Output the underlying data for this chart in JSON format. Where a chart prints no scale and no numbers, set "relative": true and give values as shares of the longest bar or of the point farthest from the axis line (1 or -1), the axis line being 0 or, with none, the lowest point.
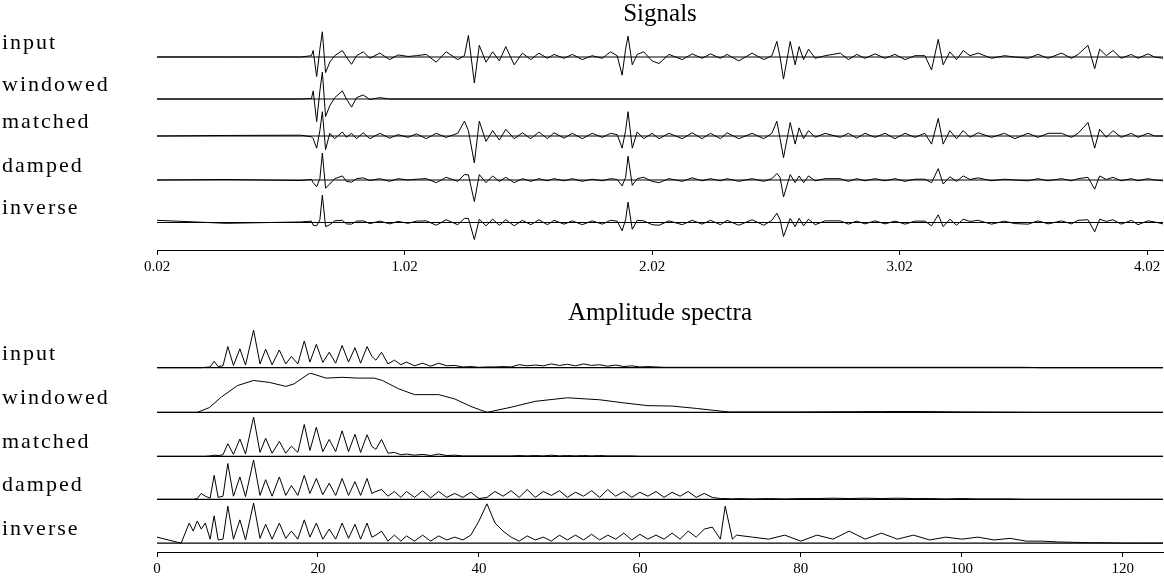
{
  "chart_data": [
    {
      "type": "line",
      "title": "Signals",
      "ylabel": "input",
      "relative": true,
      "color": "#000000",
      "xlim": [
        0.02,
        4.084
      ],
      "tick_labels": false,
      "x": [
        0.02,
        0.3,
        0.6,
        0.644,
        0.651,
        0.665,
        0.678,
        0.688,
        0.701,
        0.718,
        0.738,
        0.769,
        0.785,
        0.806,
        0.826,
        0.853,
        0.88,
        0.92,
        0.96,
        0.994,
        1.034,
        1.068,
        1.108,
        1.148,
        1.188,
        1.235,
        1.262,
        1.278,
        1.302,
        1.322,
        1.349,
        1.376,
        1.403,
        1.429,
        1.463,
        1.496,
        1.53,
        1.563,
        1.597,
        1.624,
        1.664,
        1.698,
        1.738,
        1.778,
        1.819,
        1.852,
        1.879,
        1.899,
        1.913,
        1.923,
        1.94,
        1.96,
        1.986,
        2.02,
        2.048,
        2.088,
        2.142,
        2.182,
        2.222,
        2.256,
        2.296,
        2.323,
        2.37,
        2.424,
        2.471,
        2.504,
        2.524,
        2.537,
        2.551,
        2.578,
        2.598,
        2.614,
        2.632,
        2.652,
        2.679,
        2.719,
        2.78,
        2.813,
        2.847,
        2.88,
        2.921,
        2.961,
        3.001,
        3.042,
        3.082,
        3.122,
        3.149,
        3.176,
        3.196,
        3.223,
        3.25,
        3.277,
        3.304,
        3.337,
        3.391,
        3.444,
        3.485,
        3.539,
        3.579,
        3.62,
        3.674,
        3.714,
        3.741,
        3.781,
        3.808,
        3.828,
        3.855,
        3.882,
        3.915,
        3.956,
        3.983,
        4.023,
        4.05,
        4.084
      ],
      "values": [
        0,
        0,
        0,
        0.05,
        0.25,
        -0.75,
        0.3,
        0.97,
        -0.6,
        -0.2,
        0.05,
        0.25,
        0,
        -0.28,
        0.05,
        0.2,
        -0.05,
        0.15,
        -0.1,
        0.08,
        0.02,
        0.05,
        0.1,
        -0.2,
        0.2,
        -0.1,
        0.05,
        0.83,
        -1,
        0.45,
        -0.2,
        0.2,
        -0.15,
        0.4,
        -0.3,
        0.15,
        -0.1,
        0.15,
        -0.05,
        0.1,
        -0.05,
        0.1,
        -0.1,
        0.05,
        -0.05,
        0.2,
        0.05,
        -0.7,
        0.3,
        0.8,
        -0.3,
        0.1,
        0.2,
        -0.15,
        -0.25,
        0.1,
        -0.1,
        0.12,
        -0.05,
        0.12,
        -0.05,
        0.1,
        -0.15,
        0.15,
        -0.1,
        0.05,
        0.6,
        0,
        -0.85,
        0.6,
        -0.3,
        0.4,
        -0.1,
        0.3,
        -0.05,
        0.05,
        0.15,
        -0.1,
        0.1,
        -0.05,
        0.12,
        -0.05,
        0.1,
        -0.1,
        0.05,
        0.05,
        -0.5,
        0.68,
        -0.3,
        0.2,
        -0.1,
        0.25,
        0.05,
        0.15,
        -0.05,
        0.05,
        0,
        -0.05,
        0.1,
        -0.05,
        0.15,
        -0.05,
        0.1,
        0.45,
        -0.45,
        0.3,
        0.05,
        0.25,
        -0.05,
        0.1,
        -0.05,
        0.12,
        0,
        -0.05
      ]
    },
    {
      "type": "line",
      "ylabel": "windowed",
      "relative": true,
      "color": "#000000",
      "xlim": [
        0.02,
        4.084
      ],
      "tick_labels": false,
      "x": [
        0.02,
        0.3,
        0.6,
        0.644,
        0.651,
        0.665,
        0.678,
        0.688,
        0.701,
        0.718,
        0.738,
        0.769,
        0.785,
        0.806,
        0.826,
        0.853,
        0.88,
        0.92,
        0.96,
        0.994,
        4.084
      ],
      "values": [
        0,
        0,
        0,
        0.02,
        0.3,
        -0.84,
        0.3,
        1,
        -0.65,
        -0.25,
        0.05,
        0.3,
        0,
        -0.3,
        0.05,
        0.15,
        -0.02,
        0.05,
        0,
        0,
        0
      ]
    },
    {
      "type": "line",
      "ylabel": "matched",
      "relative": true,
      "color": "#000000",
      "xlim": [
        0.02,
        4.084
      ],
      "tick_labels": false,
      "x": [
        0.02,
        0.3,
        0.6,
        0.644,
        0.651,
        0.665,
        0.678,
        0.688,
        0.701,
        0.718,
        0.738,
        0.769,
        0.785,
        0.806,
        0.826,
        0.853,
        0.88,
        0.92,
        0.96,
        0.994,
        1.034,
        1.068,
        1.108,
        1.148,
        1.188,
        1.235,
        1.262,
        1.278,
        1.302,
        1.322,
        1.349,
        1.376,
        1.403,
        1.429,
        1.463,
        1.496,
        1.53,
        1.563,
        1.597,
        1.624,
        1.664,
        1.698,
        1.738,
        1.778,
        1.819,
        1.852,
        1.879,
        1.899,
        1.913,
        1.923,
        1.94,
        1.96,
        1.986,
        2.02,
        2.048,
        2.088,
        2.142,
        2.182,
        2.222,
        2.256,
        2.296,
        2.323,
        2.37,
        2.424,
        2.471,
        2.504,
        2.524,
        2.537,
        2.551,
        2.578,
        2.598,
        2.614,
        2.632,
        2.652,
        2.679,
        2.719,
        2.78,
        2.813,
        2.847,
        2.88,
        2.921,
        2.961,
        3.001,
        3.042,
        3.082,
        3.122,
        3.149,
        3.176,
        3.196,
        3.223,
        3.25,
        3.277,
        3.304,
        3.337,
        3.391,
        3.444,
        3.485,
        3.539,
        3.579,
        3.62,
        3.674,
        3.714,
        3.741,
        3.781,
        3.808,
        3.828,
        3.855,
        3.882,
        3.915,
        3.956,
        3.983,
        4.023,
        4.05,
        4.084
      ],
      "values": [
        0,
        0.02,
        0.03,
        -0.03,
        -0.1,
        -0.45,
        0.2,
        0.9,
        -0.5,
        0.1,
        -0.1,
        0.15,
        -0.05,
        0.1,
        -0.1,
        0.12,
        -0.1,
        0.1,
        -0.08,
        0.05,
        -0.05,
        0.08,
        -0.1,
        0.1,
        -0.05,
        0.1,
        0.55,
        0.2,
        -1,
        0.55,
        -0.2,
        0.2,
        -0.15,
        0.25,
        -0.1,
        0.12,
        -0.1,
        0.15,
        -0.1,
        0.12,
        -0.08,
        0.1,
        -0.1,
        0.1,
        -0.05,
        0.1,
        0.05,
        -0.45,
        0.2,
        0.9,
        -0.45,
        0.15,
        -0.1,
        0.1,
        -0.1,
        0.1,
        -0.1,
        0.12,
        -0.1,
        0.1,
        -0.1,
        0.12,
        -0.1,
        0.1,
        -0.1,
        0.1,
        0.55,
        -0.1,
        -0.8,
        0.5,
        -0.3,
        0.3,
        -0.1,
        0.2,
        -0.05,
        0.1,
        -0.05,
        0.1,
        -0.08,
        0.1,
        -0.05,
        0.1,
        -0.1,
        0.1,
        -0.05,
        0.1,
        -0.3,
        0.65,
        -0.3,
        0.2,
        -0.1,
        0.2,
        -0.05,
        0.12,
        -0.05,
        0.1,
        -0.1,
        0.1,
        -0.05,
        0.1,
        0.1,
        -0.05,
        0.1,
        0.5,
        -0.45,
        0.25,
        -0.05,
        0.2,
        -0.05,
        0.1,
        -0.05,
        0.1,
        0,
        0
      ]
    },
    {
      "type": "line",
      "ylabel": "damped",
      "relative": true,
      "color": "#000000",
      "xlim": [
        0.02,
        4.084
      ],
      "tick_labels": false,
      "x": [
        0.02,
        0.3,
        0.6,
        0.644,
        0.651,
        0.665,
        0.678,
        0.688,
        0.701,
        0.718,
        0.738,
        0.769,
        0.785,
        0.806,
        0.826,
        0.853,
        0.88,
        0.92,
        0.96,
        0.994,
        1.034,
        1.068,
        1.108,
        1.148,
        1.188,
        1.235,
        1.262,
        1.278,
        1.302,
        1.322,
        1.349,
        1.376,
        1.403,
        1.429,
        1.463,
        1.496,
        1.53,
        1.563,
        1.597,
        1.624,
        1.664,
        1.698,
        1.738,
        1.778,
        1.819,
        1.852,
        1.879,
        1.899,
        1.913,
        1.923,
        1.94,
        1.96,
        1.986,
        2.02,
        2.048,
        2.088,
        2.142,
        2.182,
        2.222,
        2.256,
        2.296,
        2.323,
        2.37,
        2.424,
        2.471,
        2.504,
        2.524,
        2.537,
        2.551,
        2.578,
        2.598,
        2.614,
        2.632,
        2.652,
        2.679,
        2.719,
        2.78,
        2.813,
        2.847,
        2.88,
        2.921,
        2.961,
        3.001,
        3.042,
        3.082,
        3.122,
        3.149,
        3.176,
        3.196,
        3.223,
        3.25,
        3.277,
        3.304,
        3.337,
        3.391,
        3.444,
        3.485,
        3.539,
        3.579,
        3.62,
        3.674,
        3.714,
        3.741,
        3.781,
        3.808,
        3.828,
        3.855,
        3.882,
        3.915,
        3.956,
        3.983,
        4.023,
        4.05,
        4.084
      ],
      "values": [
        0,
        0.02,
        -0.02,
        0.02,
        -0.1,
        -0.25,
        0.05,
        1,
        -0.3,
        -0.15,
        0.05,
        0.15,
        -0.05,
        -0.08,
        0.05,
        0.08,
        -0.02,
        0.05,
        -0.05,
        0.05,
        0,
        0.03,
        0.05,
        -0.1,
        0.1,
        -0.05,
        0.2,
        0.19,
        -0.8,
        0.2,
        -0.1,
        0.15,
        -0.05,
        0.1,
        -0.1,
        0.05,
        -0.05,
        0.05,
        -0.03,
        0.05,
        -0.03,
        0.05,
        -0.05,
        0.03,
        -0.03,
        0.05,
        0.02,
        -0.22,
        0.1,
        0.88,
        -0.2,
        0.05,
        0.1,
        -0.05,
        -0.1,
        0.05,
        -0.05,
        0.08,
        -0.03,
        0.05,
        -0.03,
        0.05,
        -0.05,
        0.05,
        -0.05,
        0.05,
        0.24,
        0.1,
        -0.63,
        0.2,
        -0.1,
        0.15,
        -0.1,
        0.15,
        -0.03,
        0.05,
        0.05,
        -0.05,
        0.05,
        -0.03,
        0.05,
        -0.03,
        0.05,
        -0.05,
        0.03,
        0.03,
        -0.1,
        0.42,
        -0.15,
        0.12,
        -0.05,
        0.15,
        0.02,
        0.08,
        -0.03,
        0.03,
        0,
        -0.03,
        0.05,
        -0.03,
        0.05,
        -0.03,
        0.05,
        0.1,
        -0.34,
        0.15,
        0.02,
        0.1,
        -0.03,
        0.05,
        -0.03,
        0.05,
        0,
        -0.03
      ]
    },
    {
      "type": "line",
      "ylabel": "inverse",
      "relative": true,
      "color": "#000000",
      "xlim": [
        0.02,
        4.084
      ],
      "xticks": [
        0.02,
        1.02,
        2.02,
        3.02,
        4.02
      ],
      "tick_labels": "x",
      "x": [
        0.02,
        0.3,
        0.6,
        0.644,
        0.651,
        0.665,
        0.678,
        0.688,
        0.701,
        0.718,
        0.738,
        0.769,
        0.785,
        0.806,
        0.826,
        0.853,
        0.88,
        0.92,
        0.96,
        0.994,
        1.034,
        1.068,
        1.108,
        1.148,
        1.188,
        1.235,
        1.262,
        1.278,
        1.302,
        1.322,
        1.349,
        1.376,
        1.403,
        1.429,
        1.463,
        1.496,
        1.53,
        1.563,
        1.597,
        1.624,
        1.664,
        1.698,
        1.738,
        1.778,
        1.819,
        1.852,
        1.879,
        1.899,
        1.913,
        1.923,
        1.94,
        1.96,
        1.986,
        2.02,
        2.048,
        2.088,
        2.142,
        2.182,
        2.222,
        2.256,
        2.296,
        2.323,
        2.37,
        2.424,
        2.471,
        2.504,
        2.524,
        2.537,
        2.551,
        2.578,
        2.598,
        2.614,
        2.632,
        2.652,
        2.679,
        2.719,
        2.78,
        2.813,
        2.847,
        2.88,
        2.921,
        2.961,
        3.001,
        3.042,
        3.082,
        3.122,
        3.149,
        3.176,
        3.196,
        3.223,
        3.25,
        3.277,
        3.304,
        3.337,
        3.391,
        3.444,
        3.485,
        3.539,
        3.579,
        3.62,
        3.674,
        3.714,
        3.741,
        3.781,
        3.808,
        3.828,
        3.855,
        3.882,
        3.915,
        3.956,
        3.983,
        4.023,
        4.05,
        4.084
      ],
      "values": [
        0.08,
        -0.03,
        0.02,
        0.05,
        -0.1,
        -0.12,
        0.1,
        1,
        -0.15,
        -0.08,
        0.06,
        0.08,
        -0.05,
        -0.06,
        0.05,
        0.06,
        -0.04,
        0.05,
        -0.05,
        0.04,
        -0.03,
        0.05,
        0.06,
        -0.1,
        0.1,
        -0.08,
        0.15,
        0.15,
        -0.62,
        0.12,
        -0.12,
        0.12,
        -0.1,
        0.1,
        -0.12,
        0.08,
        -0.08,
        0.1,
        -0.08,
        0.08,
        -0.06,
        0.06,
        -0.08,
        0.06,
        -0.06,
        0.08,
        0.05,
        -0.3,
        0.1,
        0.74,
        -0.25,
        0.08,
        0.06,
        -0.08,
        -0.1,
        0.06,
        -0.08,
        0.08,
        -0.06,
        0.08,
        -0.08,
        0.08,
        -0.1,
        0.1,
        -0.1,
        0.08,
        0.34,
        0.1,
        -0.51,
        0.15,
        -0.15,
        0.15,
        -0.12,
        0.12,
        -0.08,
        0.06,
        0.06,
        -0.06,
        0.05,
        -0.05,
        0.06,
        -0.05,
        0.05,
        -0.06,
        0.05,
        0.05,
        -0.12,
        0.28,
        -0.15,
        0.12,
        -0.1,
        0.12,
        0.04,
        0.08,
        -0.06,
        0.05,
        -0.04,
        -0.06,
        0.06,
        -0.05,
        0.06,
        -0.05,
        0.08,
        0.1,
        -0.34,
        0.12,
        0.04,
        0.1,
        -0.06,
        0.08,
        -0.08,
        0.06,
        0.02,
        -0.05
      ]
    },
    {
      "type": "line",
      "title": "Amplitude spectra",
      "ylabel": "input",
      "relative": true,
      "color": "#000000",
      "xlim": [
        0,
        125
      ],
      "tick_labels": false,
      "x": [
        0,
        3,
        4,
        4.5,
        5,
        5.5,
        6,
        6.6,
        7.1,
        7.6,
        8.2,
        8.8,
        9.5,
        10.3,
        11,
        12,
        12.8,
        13.5,
        14.3,
        15.2,
        16,
        16.7,
        17.5,
        18.3,
        19,
        19.8,
        20.6,
        21.4,
        22.2,
        23,
        23.8,
        24.6,
        25.3,
        26.1,
        26.7,
        27.2,
        27.9,
        28.7,
        29.5,
        30.3,
        31,
        32,
        33,
        34,
        35,
        36,
        37,
        38,
        39,
        40,
        41,
        42,
        43,
        44,
        45,
        46,
        47,
        48,
        49,
        50,
        51,
        52,
        53,
        54,
        55,
        56,
        57,
        58,
        59,
        60,
        61,
        62,
        63,
        64,
        65,
        66,
        67,
        68,
        69,
        70,
        70.6,
        71.5,
        72,
        74,
        76,
        78,
        80,
        82,
        84,
        86,
        88,
        90,
        92,
        94,
        96,
        98,
        100,
        102,
        104,
        106,
        108,
        110,
        112,
        114,
        116,
        118,
        120,
        122,
        125
      ],
      "values": [
        0,
        0,
        0,
        0,
        0,
        0,
        0.01,
        0.02,
        0.17,
        0.03,
        0.05,
        0.56,
        0.06,
        0.5,
        0.07,
        1,
        0.1,
        0.49,
        0.08,
        0.47,
        0.1,
        0.3,
        0.1,
        0.71,
        0.15,
        0.62,
        0.14,
        0.41,
        0.12,
        0.59,
        0.15,
        0.53,
        0.12,
        0.56,
        0.3,
        0.2,
        0.41,
        0.1,
        0.2,
        0.08,
        0.15,
        0.05,
        0.12,
        0.04,
        0.12,
        0.05,
        0.06,
        0.02,
        0.03,
        0.01,
        0.02,
        0.02,
        0.03,
        0.02,
        0.08,
        0.05,
        0.07,
        0.05,
        0.1,
        0.06,
        0.09,
        0.05,
        0.1,
        0.06,
        0.08,
        0.04,
        0.07,
        0.03,
        0.05,
        0.02,
        0.03,
        0.02,
        0.01,
        0.01,
        0.01,
        0.01,
        0.01,
        0.01,
        0.01,
        0.01,
        0.01,
        0.01,
        0.01,
        0.01,
        0.01,
        0.01,
        0.01,
        0.01,
        0.01,
        0.01,
        0.01,
        0.01,
        0.01,
        0.01,
        0.01,
        0.01,
        0.01,
        0.01,
        0.01,
        0.01,
        0.01,
        0,
        0,
        0,
        0,
        0,
        0,
        0,
        0
      ]
    },
    {
      "type": "line",
      "ylabel": "windowed",
      "relative": true,
      "color": "#000000",
      "xlim": [
        0,
        125
      ],
      "tick_labels": false,
      "x": [
        0,
        4,
        5,
        6.5,
        8,
        10,
        12,
        14,
        16,
        17,
        19,
        21,
        23,
        25,
        27,
        28,
        30,
        32,
        35,
        37,
        39,
        41,
        44,
        47,
        51,
        55,
        58,
        61,
        64,
        67,
        71,
        80,
        90,
        95,
        100,
        110,
        125
      ],
      "values": [
        0,
        0,
        0,
        0.12,
        0.39,
        0.68,
        0.81,
        0.76,
        0.66,
        0.72,
        1,
        0.87,
        0.89,
        0.87,
        0.87,
        0.81,
        0.6,
        0.45,
        0.45,
        0.34,
        0.15,
        0,
        0.13,
        0.28,
        0.37,
        0.32,
        0.24,
        0.17,
        0.16,
        0.1,
        0.01,
        0.01,
        0.02,
        0.02,
        0.01,
        0,
        0
      ]
    },
    {
      "type": "line",
      "ylabel": "matched",
      "relative": true,
      "color": "#000000",
      "xlim": [
        0,
        125
      ],
      "tick_labels": false,
      "x": [
        0,
        3,
        4,
        4.5,
        5,
        5.5,
        6,
        6.6,
        7.1,
        7.6,
        8.2,
        8.8,
        9.5,
        10.3,
        11,
        12,
        12.8,
        13.5,
        14.3,
        15.2,
        16,
        16.7,
        17.5,
        18.3,
        19,
        19.8,
        20.6,
        21.4,
        22.2,
        23,
        23.8,
        24.6,
        25.3,
        26.1,
        26.7,
        27.2,
        27.9,
        28.7,
        29.5,
        30.3,
        31,
        32,
        33,
        34,
        35,
        36,
        37,
        38,
        39,
        40,
        41,
        42,
        43,
        44,
        45,
        46,
        47,
        48,
        49,
        50,
        51,
        52,
        53,
        54,
        55,
        56,
        57,
        58,
        59,
        60,
        61,
        62,
        63,
        64,
        65,
        66,
        67,
        68,
        69,
        70,
        70.6,
        71.5,
        72,
        74,
        76,
        78,
        80,
        82,
        84,
        86,
        88,
        90,
        92,
        94,
        96,
        98,
        100,
        102,
        104,
        106,
        108,
        110,
        112,
        114,
        116,
        118,
        120,
        122,
        125
      ],
      "values": [
        0,
        0,
        0,
        0,
        0,
        0,
        0,
        0.01,
        0.03,
        0.02,
        0.04,
        0.32,
        0.05,
        0.44,
        0.06,
        1,
        0.1,
        0.46,
        0.08,
        0.38,
        0.08,
        0.26,
        0.1,
        0.81,
        0.15,
        0.74,
        0.12,
        0.43,
        0.12,
        0.65,
        0.12,
        0.56,
        0.1,
        0.55,
        0.25,
        0.18,
        0.43,
        0.08,
        0.1,
        0.04,
        0.06,
        0.03,
        0.05,
        0.02,
        0.06,
        0.02,
        0.03,
        0.01,
        0.01,
        0.01,
        0.01,
        0.01,
        0.01,
        0.01,
        0.02,
        0.01,
        0.02,
        0.01,
        0.03,
        0.01,
        0.02,
        0.01,
        0.02,
        0.01,
        0.02,
        0.01,
        0.01,
        0.01,
        0.01,
        0,
        0,
        0,
        0,
        0,
        0,
        0,
        0,
        0,
        0,
        0,
        0,
        0,
        0,
        0,
        0,
        0,
        0,
        0,
        0,
        0,
        0,
        0,
        0,
        0,
        0,
        0,
        0,
        0,
        0,
        0,
        0,
        0,
        0,
        0,
        0,
        0,
        0,
        0,
        0
      ]
    },
    {
      "type": "line",
      "ylabel": "damped",
      "relative": true,
      "color": "#000000",
      "xlim": [
        0,
        125
      ],
      "tick_labels": false,
      "x": [
        0,
        3,
        4,
        4.5,
        5,
        5.5,
        6,
        6.6,
        7.1,
        7.6,
        8.2,
        8.8,
        9.5,
        10.3,
        11,
        12,
        12.8,
        13.5,
        14.3,
        15.2,
        16,
        16.7,
        17.5,
        18.3,
        19,
        19.8,
        20.6,
        21.4,
        22.2,
        23,
        23.8,
        24.6,
        25.3,
        26.1,
        26.7,
        27.2,
        27.9,
        28.7,
        29.5,
        30.3,
        31,
        32,
        33,
        34,
        35,
        36,
        37,
        38,
        39,
        40,
        41,
        42,
        43,
        44,
        45,
        46,
        47,
        48,
        49,
        50,
        51,
        52,
        53,
        54,
        55,
        56,
        57,
        58,
        59,
        60,
        61,
        62,
        63,
        64,
        65,
        66,
        67,
        68,
        69,
        70,
        70.6,
        71.5,
        72,
        74,
        76,
        78,
        80,
        82,
        84,
        86,
        88,
        90,
        92,
        94,
        96,
        98,
        100,
        102,
        104,
        106,
        108,
        110,
        112,
        114,
        116,
        118,
        120,
        122,
        125
      ],
      "values": [
        0,
        0,
        0,
        0,
        0.02,
        0.15,
        0.08,
        0.03,
        0.61,
        0.05,
        0.08,
        0.91,
        0.08,
        0.57,
        0.07,
        1,
        0.1,
        0.5,
        0.08,
        0.57,
        0.1,
        0.35,
        0.1,
        0.61,
        0.15,
        0.53,
        0.12,
        0.41,
        0.1,
        0.53,
        0.1,
        0.45,
        0.1,
        0.53,
        0.15,
        0.2,
        0.25,
        0.08,
        0.2,
        0.05,
        0.2,
        0.05,
        0.22,
        0.04,
        0.2,
        0.05,
        0.15,
        0.05,
        0.18,
        0.02,
        0.05,
        0.2,
        0.08,
        0.22,
        0.05,
        0.25,
        0.05,
        0.2,
        0.1,
        0.22,
        0.05,
        0.18,
        0.08,
        0.22,
        0.05,
        0.25,
        0.08,
        0.2,
        0.05,
        0.18,
        0.08,
        0.2,
        0.05,
        0.18,
        0.08,
        0.2,
        0.05,
        0.15,
        0.05,
        0.02,
        0.02,
        0.01,
        0.02,
        0.01,
        0.02,
        0.01,
        0.02,
        0.02,
        0.03,
        0.02,
        0.03,
        0.02,
        0.03,
        0.02,
        0.02,
        0.01,
        0.02,
        0.01,
        0.01,
        0.01,
        0,
        0,
        0,
        0,
        0,
        0,
        0,
        0,
        0
      ]
    },
    {
      "type": "line",
      "ylabel": "inverse",
      "relative": true,
      "color": "#000000",
      "xlim": [
        0,
        125
      ],
      "xticks": [
        0,
        20,
        40,
        60,
        80,
        100,
        120
      ],
      "tick_labels": "x",
      "x": [
        0,
        3,
        4,
        4.5,
        5,
        5.5,
        6,
        6.6,
        7.1,
        7.6,
        8.2,
        8.8,
        9.5,
        10.3,
        11,
        12,
        12.8,
        13.5,
        14.3,
        15.2,
        16,
        16.7,
        17.5,
        18.3,
        19,
        19.8,
        20.6,
        21.4,
        22.2,
        23,
        23.8,
        24.6,
        25.3,
        26.1,
        26.7,
        27.2,
        27.9,
        28.7,
        29.5,
        30.3,
        31,
        32,
        33,
        34,
        35,
        36,
        37,
        38,
        39,
        40,
        41,
        42,
        43,
        44,
        45,
        46,
        47,
        48,
        49,
        50,
        51,
        52,
        53,
        54,
        55,
        56,
        57,
        58,
        59,
        60,
        61,
        62,
        63,
        64,
        65,
        66,
        67,
        68,
        69,
        70,
        70.6,
        71.5,
        72,
        74,
        76,
        78,
        80,
        82,
        84,
        86,
        88,
        90,
        92,
        94,
        96,
        98,
        100,
        102,
        104,
        106,
        108,
        110,
        112,
        114,
        116,
        118,
        120,
        122,
        125
      ],
      "values": [
        0.15,
        0,
        0.5,
        0.3,
        0.55,
        0.35,
        0.5,
        0.1,
        0.68,
        0.08,
        0.1,
        0.92,
        0.1,
        0.58,
        0.08,
        1,
        0.12,
        0.47,
        0.1,
        0.5,
        0.12,
        0.3,
        0.1,
        0.58,
        0.15,
        0.5,
        0.1,
        0.35,
        0.1,
        0.5,
        0.12,
        0.47,
        0.1,
        0.5,
        0.15,
        0.2,
        0.3,
        0.05,
        0.2,
        0.05,
        0.18,
        0.05,
        0.2,
        0.05,
        0.18,
        0.08,
        0.15,
        0.08,
        0.2,
        0.55,
        0.98,
        0.5,
        0.3,
        0.15,
        0.05,
        0.18,
        0.08,
        0.15,
        0.05,
        0.2,
        0.08,
        0.2,
        0.08,
        0.22,
        0.08,
        0.2,
        0.1,
        0.25,
        0.08,
        0.22,
        0.1,
        0.2,
        0.1,
        0.25,
        0.1,
        0.3,
        0.15,
        0.35,
        0.4,
        0.1,
        0.92,
        0.1,
        0.2,
        0.15,
        0.1,
        0.2,
        0.05,
        0.2,
        0.1,
        0.3,
        0.1,
        0.25,
        0.1,
        0.2,
        0.08,
        0.15,
        0.1,
        0.15,
        0.08,
        0.12,
        0.05,
        0.05,
        0.03,
        0.02,
        0.01,
        0.01,
        0,
        0,
        0
      ]
    }
  ]
}
